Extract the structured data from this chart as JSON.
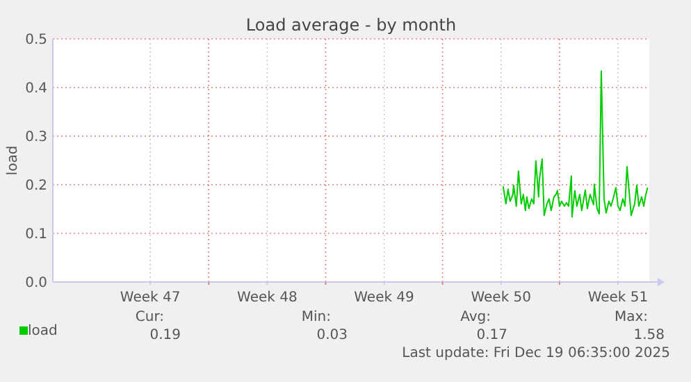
{
  "chart_data": {
    "type": "line",
    "title": "Load average - by month",
    "ylabel": "load",
    "x": [
      "2025-12-10T15:00",
      "2025-12-10T19:00",
      "2025-12-10T22:00",
      "2025-12-11T01:00",
      "2025-12-11T05:00",
      "2025-12-11T06:00",
      "2025-12-11T10:00",
      "2025-12-11T13:00",
      "2025-12-11T17:00",
      "2025-12-11T20:00",
      "2025-12-11T23:00",
      "2025-12-12T01:00",
      "2025-12-12T04:00",
      "2025-12-12T08:00",
      "2025-12-12T11:00",
      "2025-12-12T14:00",
      "2025-12-12T18:00",
      "2025-12-12T19:00",
      "2025-12-12T23:00",
      "2025-12-13T02:00",
      "2025-12-13T06:00",
      "2025-12-13T09:00",
      "2025-12-13T12:00",
      "2025-12-13T16:00",
      "2025-12-13T19:00",
      "2025-12-13T21:00",
      "2025-12-14T00:00",
      "2025-12-14T03:00",
      "2025-12-14T07:00",
      "2025-12-14T10:00",
      "2025-12-14T13:00",
      "2025-12-14T17:00",
      "2025-12-14T18:00",
      "2025-12-14T22:00",
      "2025-12-15T01:00",
      "2025-12-15T05:00",
      "2025-12-15T08:00",
      "2025-12-15T13:00",
      "2025-12-15T16:00",
      "2025-12-15T20:00",
      "2025-12-16T01:00",
      "2025-12-16T02:00",
      "2025-12-16T06:00",
      "2025-12-16T09:00",
      "2025-12-16T12:00",
      "2025-12-16T16:00",
      "2025-12-16T19:00",
      "2025-12-16T23:00",
      "2025-12-17T02:00",
      "2025-12-17T05:00",
      "2025-12-17T09:00",
      "2025-12-17T12:00",
      "2025-12-17T15:00",
      "2025-12-17T19:00",
      "2025-12-17T22:00",
      "2025-12-18T01:00",
      "2025-12-18T07:00",
      "2025-12-18T12:00",
      "2025-12-18T15:00",
      "2025-12-18T18:00",
      "2025-12-18T22:00",
      "2025-12-19T01:00",
      "2025-12-19T04:00",
      "2025-12-19T06:35"
    ],
    "series": [
      {
        "name": "load",
        "color": "#00cc00",
        "values": [
          0.197,
          0.161,
          0.191,
          0.166,
          0.18,
          0.199,
          0.156,
          0.228,
          0.161,
          0.18,
          0.147,
          0.175,
          0.151,
          0.171,
          0.161,
          0.249,
          0.175,
          0.209,
          0.253,
          0.137,
          0.161,
          0.171,
          0.147,
          0.175,
          0.18,
          0.188,
          0.156,
          0.166,
          0.156,
          0.163,
          0.156,
          0.218,
          0.134,
          0.188,
          0.156,
          0.18,
          0.147,
          0.189,
          0.151,
          0.18,
          0.159,
          0.201,
          0.151,
          0.14,
          0.434,
          0.171,
          0.142,
          0.166,
          0.156,
          0.171,
          0.194,
          0.156,
          0.147,
          0.171,
          0.156,
          0.237,
          0.137,
          0.161,
          0.199,
          0.156,
          0.175,
          0.156,
          0.18,
          0.194
        ]
      }
    ],
    "xlim": [
      "2025-11-13T16:00",
      "2025-12-19T09:00"
    ],
    "xticks": [
      {
        "value": "2025-11-19T12:00",
        "label": "Week 47"
      },
      {
        "value": "2025-11-23T00:00",
        "label": null
      },
      {
        "value": "2025-11-26T12:00",
        "label": "Week 48"
      },
      {
        "value": "2025-11-30T00:00",
        "label": null
      },
      {
        "value": "2025-12-03T12:00",
        "label": "Week 49"
      },
      {
        "value": "2025-12-07T00:00",
        "label": null
      },
      {
        "value": "2025-12-10T12:00",
        "label": "Week 50"
      },
      {
        "value": "2025-12-14T00:00",
        "label": null
      },
      {
        "value": "2025-12-17T12:00",
        "label": "Week 51"
      }
    ],
    "ylim": [
      0,
      0.5
    ],
    "yticks": [
      {
        "value": 0,
        "label": "0.0"
      },
      {
        "value": 0.1,
        "label": "0.1"
      },
      {
        "value": 0.2,
        "label": "0.2"
      },
      {
        "value": 0.3,
        "label": "0.3"
      },
      {
        "value": 0.4,
        "label": "0.4"
      },
      {
        "value": 0.5,
        "label": "0.5"
      }
    ],
    "grid": true,
    "legend": "bottom left",
    "marker": "none",
    "line_style": "solid",
    "annotations": [
      "Cur:",
      "0.19",
      "Min:",
      "0.03",
      "Avg:",
      "0.17",
      "Max:",
      "1.58",
      "Last update: Fri Dec 19 06:35:00 2025"
    ]
  }
}
